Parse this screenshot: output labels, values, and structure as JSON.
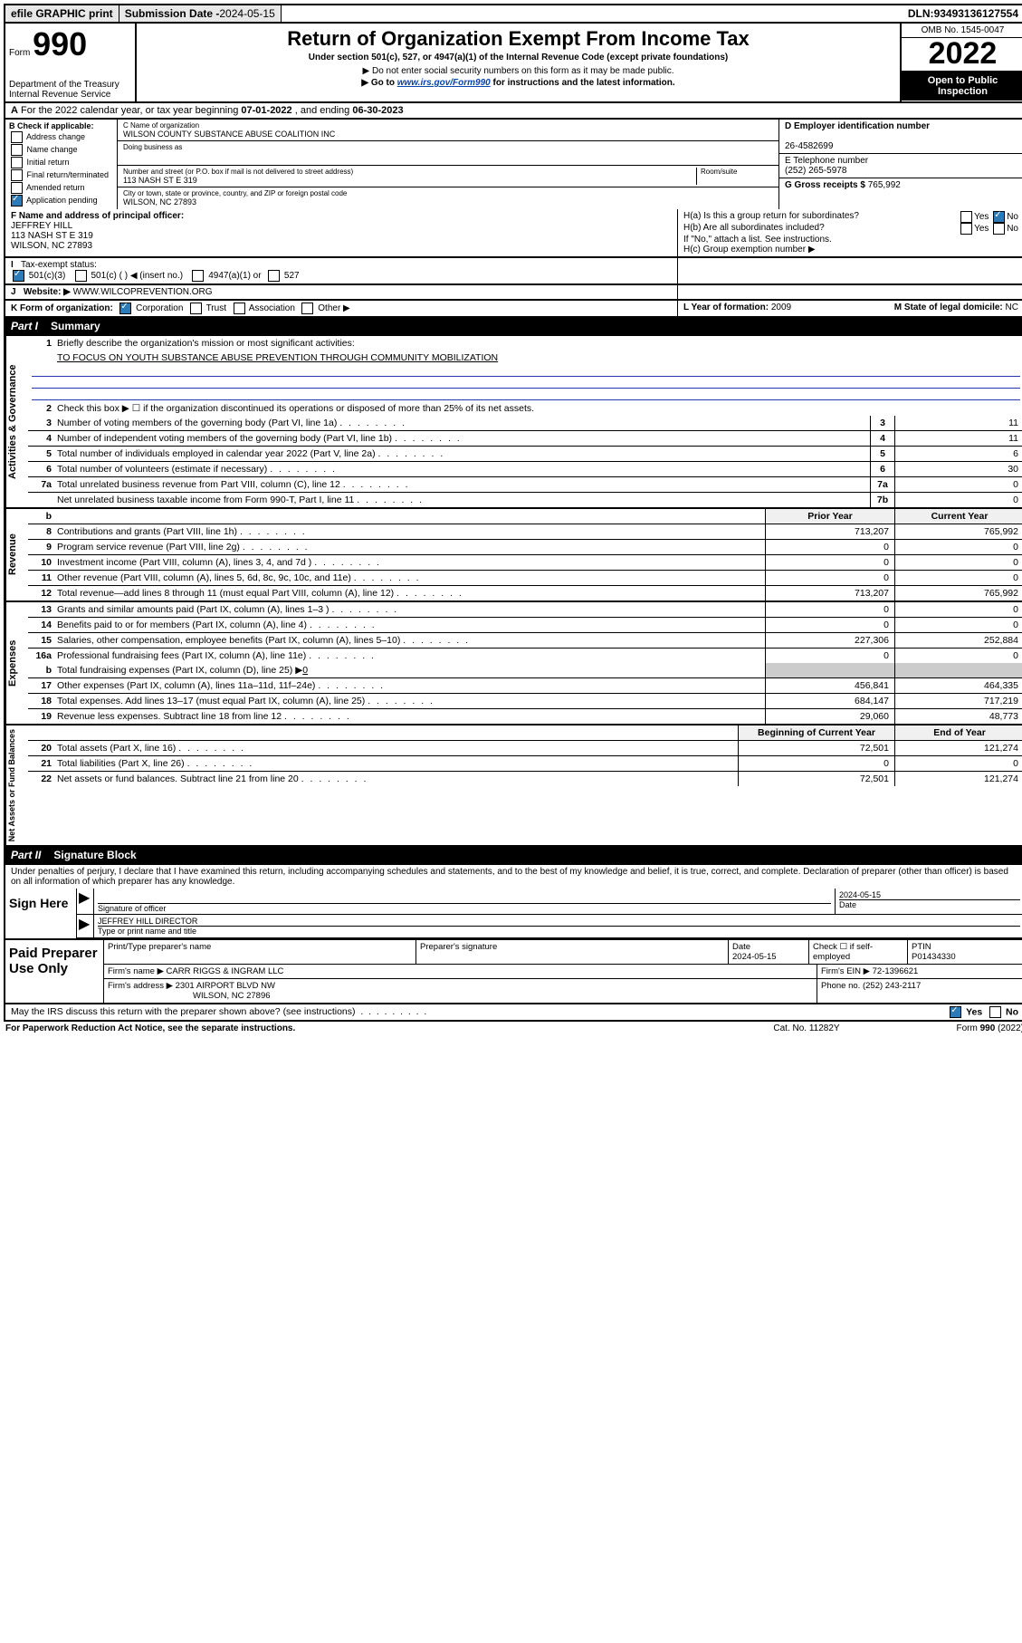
{
  "topbar": {
    "efile": "efile GRAPHIC print",
    "sub_label": "Submission Date - ",
    "sub_date": "2024-05-15",
    "dln_label": "DLN: ",
    "dln": "93493136127554"
  },
  "header": {
    "form_label": "Form",
    "form_num": "990",
    "title": "Return of Organization Exempt From Income Tax",
    "line1": "Under section 501(c), 527, or 4947(a)(1) of the Internal Revenue Code (except private foundations)",
    "line2_pre": "▶ Do not enter social security numbers on this form as it may be made public.",
    "line3_pre": "▶ Go to ",
    "line3_link": "www.irs.gov/Form990",
    "line3_post": " for instructions and the latest information.",
    "dept": "Department of the Treasury",
    "irs": "Internal Revenue Service",
    "omb": "OMB No. 1545-0047",
    "year": "2022",
    "open1": "Open to Public",
    "open2": "Inspection"
  },
  "rowA": {
    "pre": "For the 2022 calendar year, or tax year beginning ",
    "begin": "07-01-2022",
    "mid": " , and ending ",
    "end": "06-30-2023"
  },
  "colB": {
    "label": "B Check if applicable:",
    "opts": [
      "Address change",
      "Name change",
      "Initial return",
      "Final return/terminated",
      "Amended return",
      "Application pending"
    ]
  },
  "colC": {
    "name_lbl": "C Name of organization",
    "name": "WILSON COUNTY SUBSTANCE ABUSE COALITION INC",
    "dba_lbl": "Doing business as",
    "addr_lbl": "Number and street (or P.O. box if mail is not delivered to street address)",
    "room_lbl": "Room/suite",
    "addr": "113 NASH ST E 319",
    "city_lbl": "City or town, state or province, country, and ZIP or foreign postal code",
    "city": "WILSON, NC  27893"
  },
  "colD": {
    "ein_lbl": "D Employer identification number",
    "ein": "26-4582699",
    "phone_lbl": "E Telephone number",
    "phone": "(252) 265-5978",
    "gross_lbl": "G Gross receipts $ ",
    "gross": "765,992"
  },
  "rowF": {
    "f_lbl": "F  Name and address of principal officer:",
    "f_name": "JEFFREY HILL",
    "f_addr1": "113 NASH ST E 319",
    "f_addr2": "WILSON, NC  27893",
    "ha": "H(a)  Is this a group return for subordinates?",
    "hb": "H(b)  Are all subordinates included?",
    "hb_note": "If \"No,\" attach a list. See instructions.",
    "hc": "H(c)  Group exemption number ▶",
    "yes": "Yes",
    "no": "No"
  },
  "rowI": {
    "tax_lbl": "Tax-exempt status:",
    "opt1": "501(c)(3)",
    "opt2": "501(c) (  ) ◀ (insert no.)",
    "opt3": "4947(a)(1) or",
    "opt4": "527"
  },
  "rowJ": {
    "lbl": "Website: ▶ ",
    "val": "WWW.WILCOPREVENTION.ORG"
  },
  "rowK": {
    "lbl": "K Form of organization:",
    "opts": [
      "Corporation",
      "Trust",
      "Association",
      "Other ▶"
    ],
    "L_lbl": "L Year of formation: ",
    "L_val": "2009",
    "M_lbl": "M State of legal domicile: ",
    "M_val": "NC"
  },
  "part1": {
    "part": "Part I",
    "title": "Summary",
    "vtabs": [
      "Activities & Governance",
      "Revenue",
      "Expenses",
      "Net Assets or Fund Balances"
    ],
    "q1_lbl": "Briefly describe the organization's mission or most significant activities:",
    "q1_val": "TO FOCUS ON YOUTH SUBSTANCE ABUSE PREVENTION THROUGH COMMUNITY MOBILIZATION",
    "q2": "Check this box ▶ ☐  if the organization discontinued its operations or disposed of more than 25% of its net assets.",
    "rows_ag": [
      {
        "n": "3",
        "d": "Number of voting members of the governing body (Part VI, line 1a)",
        "bn": "3",
        "v": "11"
      },
      {
        "n": "4",
        "d": "Number of independent voting members of the governing body (Part VI, line 1b)",
        "bn": "4",
        "v": "11"
      },
      {
        "n": "5",
        "d": "Total number of individuals employed in calendar year 2022 (Part V, line 2a)",
        "bn": "5",
        "v": "6"
      },
      {
        "n": "6",
        "d": "Total number of volunteers (estimate if necessary)",
        "bn": "6",
        "v": "30"
      },
      {
        "n": "7a",
        "d": "Total unrelated business revenue from Part VIII, column (C), line 12",
        "bn": "7a",
        "v": "0"
      },
      {
        "n": "",
        "d": "Net unrelated business taxable income from Form 990-T, Part I, line 11",
        "bn": "7b",
        "v": "0"
      }
    ],
    "hdr_prior": "Prior Year",
    "hdr_curr": "Current Year",
    "rows_rev": [
      {
        "n": "8",
        "d": "Contributions and grants (Part VIII, line 1h)",
        "p": "713,207",
        "c": "765,992"
      },
      {
        "n": "9",
        "d": "Program service revenue (Part VIII, line 2g)",
        "p": "0",
        "c": "0"
      },
      {
        "n": "10",
        "d": "Investment income (Part VIII, column (A), lines 3, 4, and 7d )",
        "p": "0",
        "c": "0"
      },
      {
        "n": "11",
        "d": "Other revenue (Part VIII, column (A), lines 5, 6d, 8c, 9c, 10c, and 11e)",
        "p": "0",
        "c": "0"
      },
      {
        "n": "12",
        "d": "Total revenue—add lines 8 through 11 (must equal Part VIII, column (A), line 12)",
        "p": "713,207",
        "c": "765,992"
      }
    ],
    "rows_exp": [
      {
        "n": "13",
        "d": "Grants and similar amounts paid (Part IX, column (A), lines 1–3 )",
        "p": "0",
        "c": "0"
      },
      {
        "n": "14",
        "d": "Benefits paid to or for members (Part IX, column (A), line 4)",
        "p": "0",
        "c": "0"
      },
      {
        "n": "15",
        "d": "Salaries, other compensation, employee benefits (Part IX, column (A), lines 5–10)",
        "p": "227,306",
        "c": "252,884"
      },
      {
        "n": "16a",
        "d": "Professional fundraising fees (Part IX, column (A), line 11e)",
        "p": "0",
        "c": "0"
      }
    ],
    "row_16b": {
      "n": "b",
      "d": "Total fundraising expenses (Part IX, column (D), line 25) ▶",
      "v": "0"
    },
    "rows_exp2": [
      {
        "n": "17",
        "d": "Other expenses (Part IX, column (A), lines 11a–11d, 11f–24e)",
        "p": "456,841",
        "c": "464,335"
      },
      {
        "n": "18",
        "d": "Total expenses. Add lines 13–17 (must equal Part IX, column (A), line 25)",
        "p": "684,147",
        "c": "717,219"
      },
      {
        "n": "19",
        "d": "Revenue less expenses. Subtract line 18 from line 12",
        "p": "29,060",
        "c": "48,773"
      }
    ],
    "hdr_begin": "Beginning of Current Year",
    "hdr_end": "End of Year",
    "rows_na": [
      {
        "n": "20",
        "d": "Total assets (Part X, line 16)",
        "p": "72,501",
        "c": "121,274"
      },
      {
        "n": "21",
        "d": "Total liabilities (Part X, line 26)",
        "p": "0",
        "c": "0"
      },
      {
        "n": "22",
        "d": "Net assets or fund balances. Subtract line 21 from line 20",
        "p": "72,501",
        "c": "121,274"
      }
    ]
  },
  "part2": {
    "part": "Part II",
    "title": "Signature Block",
    "penalties": "Under penalties of perjury, I declare that I have examined this return, including accompanying schedules and statements, and to the best of my knowledge and belief, it is true, correct, and complete. Declaration of preparer (other than officer) is based on all information of which preparer has any knowledge.",
    "sign_here": "Sign Here",
    "sig_of_officer": "Signature of officer",
    "date": "Date",
    "date_val": "2024-05-15",
    "officer_name": "JEFFREY HILL DIRECTOR",
    "type_print": "Type or print name and title"
  },
  "prep": {
    "title": "Paid Preparer Use Only",
    "h1": "Print/Type preparer's name",
    "h2": "Preparer's signature",
    "h3": "Date",
    "h3v": "2024-05-15",
    "h4": "Check ☐ if self-employed",
    "h5": "PTIN",
    "h5v": "P01434330",
    "firm_name_lbl": "Firm's name    ▶ ",
    "firm_name": "CARR RIGGS & INGRAM LLC",
    "firm_ein_lbl": "Firm's EIN ▶ ",
    "firm_ein": "72-1396621",
    "firm_addr_lbl": "Firm's address ▶ ",
    "firm_addr1": "2301 AIRPORT BLVD NW",
    "firm_addr2": "WILSON, NC  27896",
    "firm_phone_lbl": "Phone no. ",
    "firm_phone": "(252) 243-2117"
  },
  "discuss": {
    "q": "May the IRS discuss this return with the preparer shown above? (see instructions)",
    "yes": "Yes",
    "no": "No"
  },
  "footer": {
    "left": "For Paperwork Reduction Act Notice, see the separate instructions.",
    "mid": "Cat. No. 11282Y",
    "right_pre": "Form ",
    "right_bold": "990",
    "right_post": " (2022)"
  }
}
